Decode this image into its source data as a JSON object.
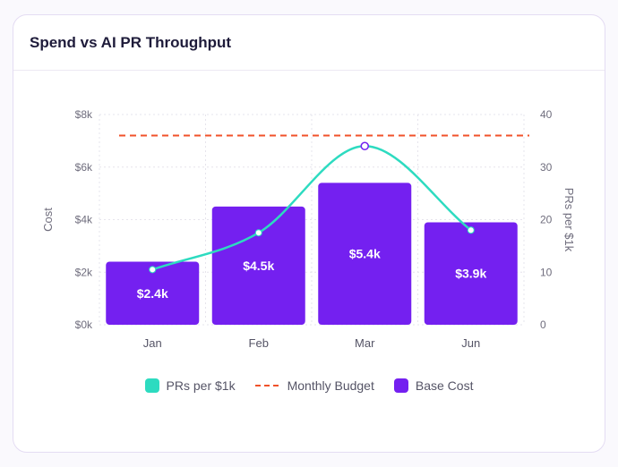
{
  "card": {
    "title": "Spend vs AI PR Throughput"
  },
  "chart_data": {
    "type": "bar",
    "categories": [
      "Jan",
      "Feb",
      "Mar",
      "Jun"
    ],
    "series": [
      {
        "name": "Base Cost",
        "type": "bar",
        "axis": "left",
        "values": [
          2.4,
          4.5,
          5.4,
          3.9
        ],
        "labels": [
          "$2.4k",
          "$4.5k",
          "$5.4k",
          "$3.9k"
        ],
        "color": "#7420f0"
      },
      {
        "name": "PRs per $1k",
        "type": "line",
        "smooth": true,
        "axis": "right",
        "values": [
          10.5,
          17.5,
          34,
          18
        ],
        "color": "#2ddbc0"
      },
      {
        "name": "Monthly Budget",
        "type": "line",
        "dashed": true,
        "axis": "left",
        "values": [
          7.2,
          7.2,
          7.2,
          7.2
        ],
        "color": "#f0522a"
      }
    ],
    "y_left": {
      "label": "Cost",
      "ticks": [
        "$0k",
        "$2k",
        "$4k",
        "$6k",
        "$8k"
      ],
      "range": [
        0,
        8
      ]
    },
    "y_right": {
      "label": "PRs per $1k",
      "ticks": [
        "0",
        "10",
        "20",
        "30",
        "40"
      ],
      "range": [
        0,
        40
      ]
    },
    "grid": true,
    "legend_position": "bottom-center"
  },
  "legend": [
    {
      "name": "PRs per $1k",
      "style": "box",
      "color": "#2ddbc0"
    },
    {
      "name": "Monthly Budget",
      "style": "dash",
      "color": "#f0522a"
    },
    {
      "name": "Base Cost",
      "style": "box",
      "color": "#7420f0"
    }
  ]
}
